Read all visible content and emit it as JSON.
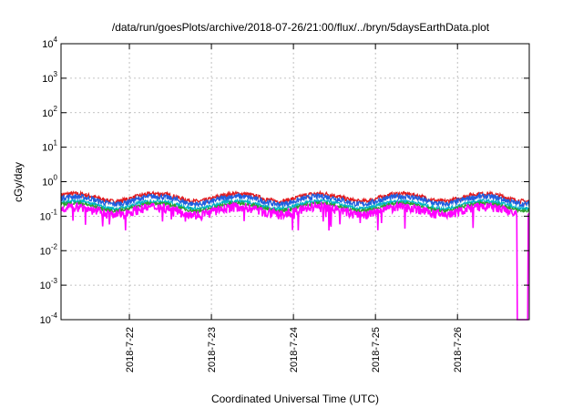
{
  "chart_data": {
    "type": "line",
    "title": "/data/run/goesPlots/archive/2018-07-26/21:00/flux/../bryn/5daysEarthData.plot",
    "xlabel": "Coordinated Universal Time (UTC)",
    "ylabel": "cGy/day",
    "yscale": "log",
    "ylim": [
      0.0001,
      10000
    ],
    "xlim": [
      "2018-07-21T04:00",
      "2018-07-26T21:00"
    ],
    "x_ticks": [
      "2018-7-22",
      "2018-7-23",
      "2018-7-24",
      "2018-7-25",
      "2018-7-26"
    ],
    "y_ticks": [
      {
        "base": "10",
        "exp": "4"
      },
      {
        "base": "10",
        "exp": "3"
      },
      {
        "base": "10",
        "exp": "2"
      },
      {
        "base": "10",
        "exp": "1"
      },
      {
        "base": "10",
        "exp": "0"
      },
      {
        "base": "10",
        "exp": "-1"
      },
      {
        "base": "10",
        "exp": "-2"
      },
      {
        "base": "10",
        "exp": "-3"
      },
      {
        "base": "10",
        "exp": "-4"
      }
    ],
    "grid": true,
    "series": [
      {
        "color": "#e41a1c",
        "level": 0.36,
        "noise": 0.15
      },
      {
        "color": "#1f5fe0",
        "level": 0.3,
        "noise": 0.18
      },
      {
        "color": "#00b4c8",
        "level": 0.22,
        "noise": 0.12
      },
      {
        "color": "#2ca02c",
        "level": 0.19,
        "noise": 0.1
      },
      {
        "color": "#ff00ff",
        "level": 0.15,
        "noise": 0.3
      }
    ],
    "dropout": {
      "x": "2018-07-26T19:00",
      "min": 0.0001
    }
  }
}
